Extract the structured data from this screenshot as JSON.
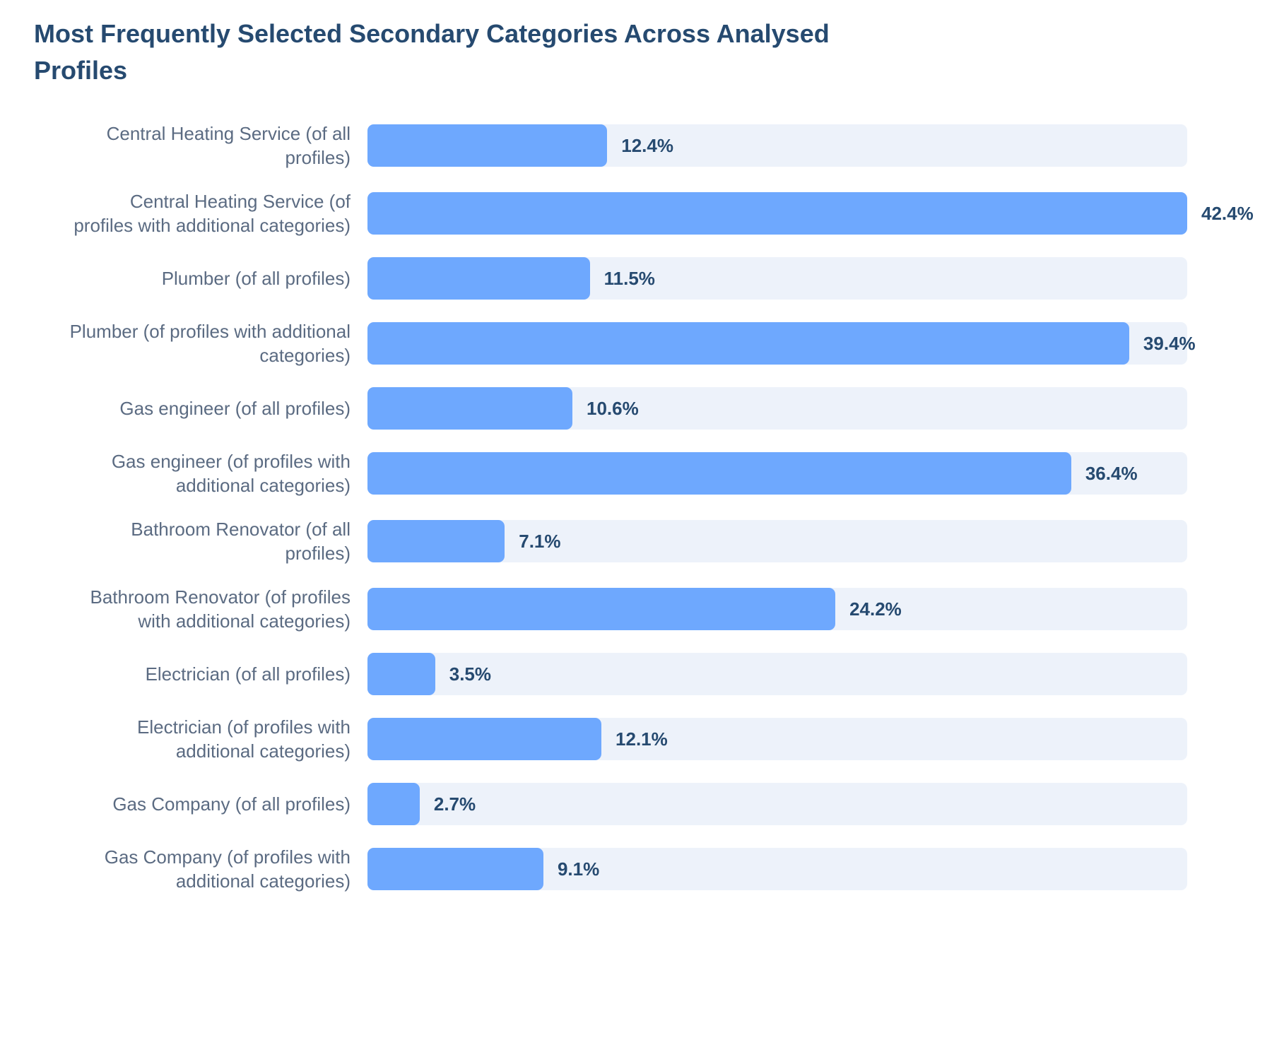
{
  "chart_data": {
    "type": "bar",
    "orientation": "horizontal",
    "title": "Most Frequently Selected Secondary Categories Across Analysed Profiles",
    "categories": [
      "Central Heating Service (of all profiles)",
      "Central Heating Service (of profiles with additional categories)",
      "Plumber (of all profiles)",
      "Plumber (of profiles with additional categories)",
      "Gas engineer (of all profiles)",
      "Gas engineer (of profiles with additional categories)",
      "Bathroom Renovator (of all profiles)",
      "Bathroom Renovator (of profiles with additional categories)",
      "Electrician (of all profiles)",
      "Electrician (of profiles with additional categories)",
      "Gas Company (of all profiles)",
      "Gas Company (of profiles with additional categories)"
    ],
    "values": [
      12.4,
      42.4,
      11.5,
      39.4,
      10.6,
      36.4,
      7.1,
      24.2,
      3.5,
      12.1,
      2.7,
      9.1
    ],
    "value_labels": [
      "12.4%",
      "42.4%",
      "11.5%",
      "39.4%",
      "10.6%",
      "36.4%",
      "7.1%",
      "24.2%",
      "3.5%",
      "12.1%",
      "2.7%",
      "9.1%"
    ],
    "color": "#6ea8fe",
    "track_color": "#edf2fa"
  }
}
